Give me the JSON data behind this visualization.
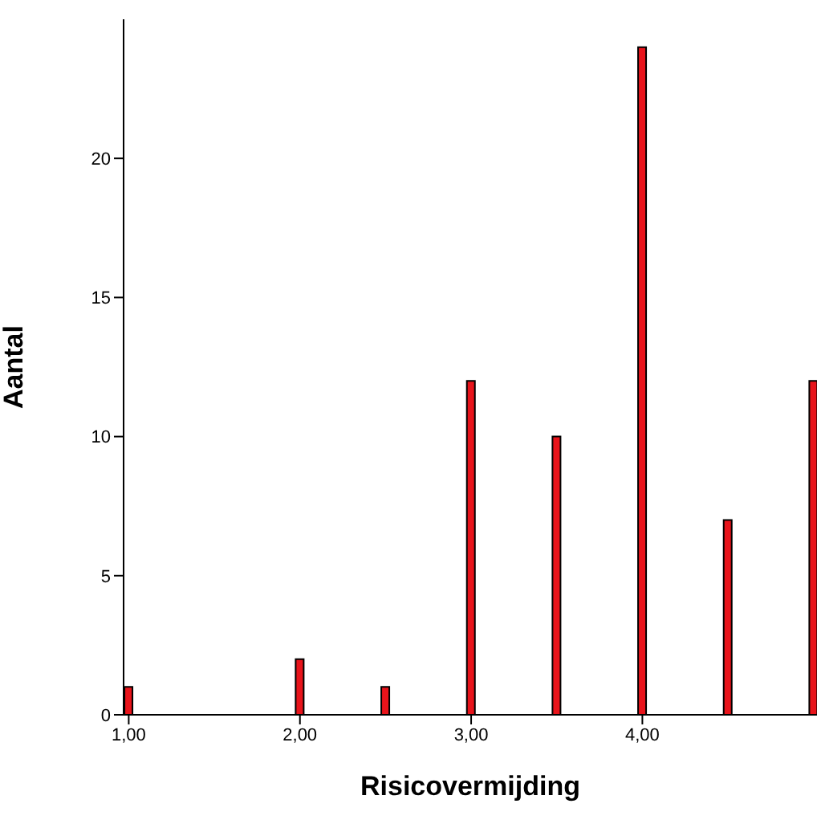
{
  "chart_data": {
    "type": "bar",
    "xlabel": "Risicovermijding",
    "ylabel": "Aantal",
    "x": [
      1,
      2,
      2.5,
      3,
      3.5,
      4,
      4.5,
      5
    ],
    "values": [
      1,
      2,
      1,
      12,
      10,
      24,
      7,
      12
    ],
    "color": "#e8141b",
    "xlim": [
      0.97,
      5.02
    ],
    "xticks": [
      {
        "value": 1,
        "label": "1,00"
      },
      {
        "value": 2,
        "label": "2,00"
      },
      {
        "value": 3,
        "label": "3,00"
      },
      {
        "value": 4,
        "label": "4,00"
      }
    ],
    "ylim": [
      0,
      25
    ],
    "yticks": [
      0,
      5,
      10,
      15,
      20
    ],
    "grid": false,
    "legend": false
  }
}
